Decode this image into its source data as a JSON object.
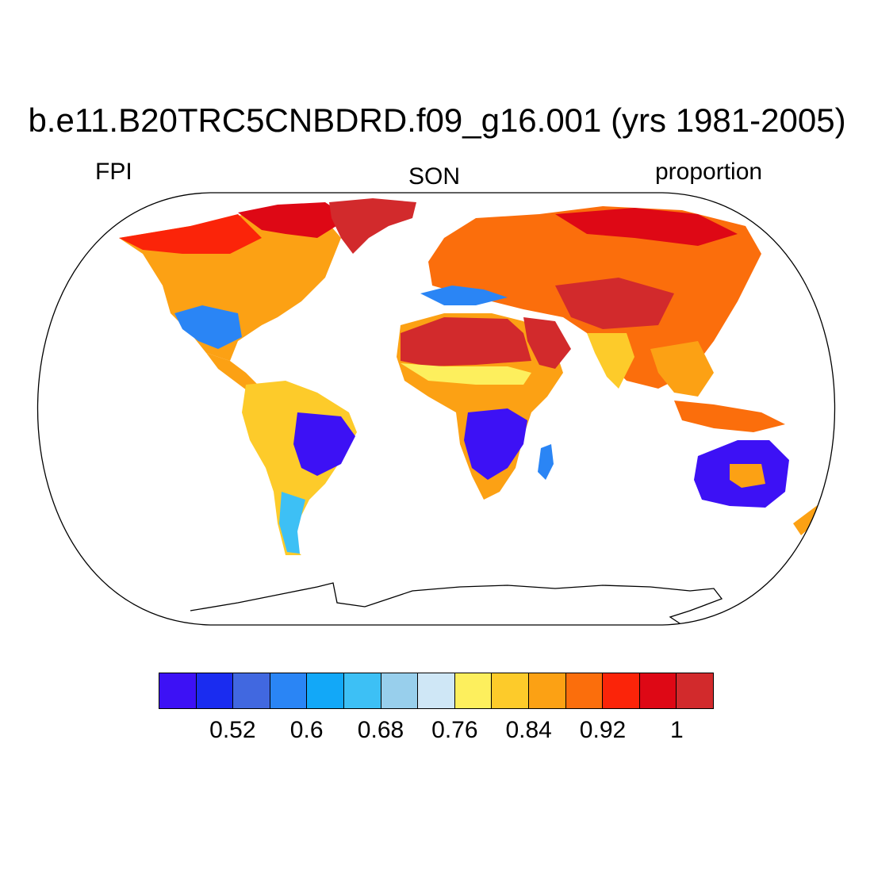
{
  "title": "b.e11.B20TRC5CNBDRD.f09_g16.001 (yrs 1981-2005)",
  "left_label": "FPI",
  "center_label": "SON",
  "right_label": "proportion",
  "colorbar": {
    "colors": [
      "#3d11f5",
      "#1a2cf0",
      "#4168e0",
      "#2a85f5",
      "#12a8f8",
      "#3dc0f5",
      "#98cfec",
      "#cfe7f6",
      "#fdef5d",
      "#fdcb2a",
      "#fca114",
      "#fb6e0c",
      "#fb2409",
      "#de0815",
      "#d22a2c"
    ],
    "tick_labels": [
      "0.52",
      "0.6",
      "0.68",
      "0.76",
      "0.84",
      "0.92",
      "1"
    ]
  }
}
